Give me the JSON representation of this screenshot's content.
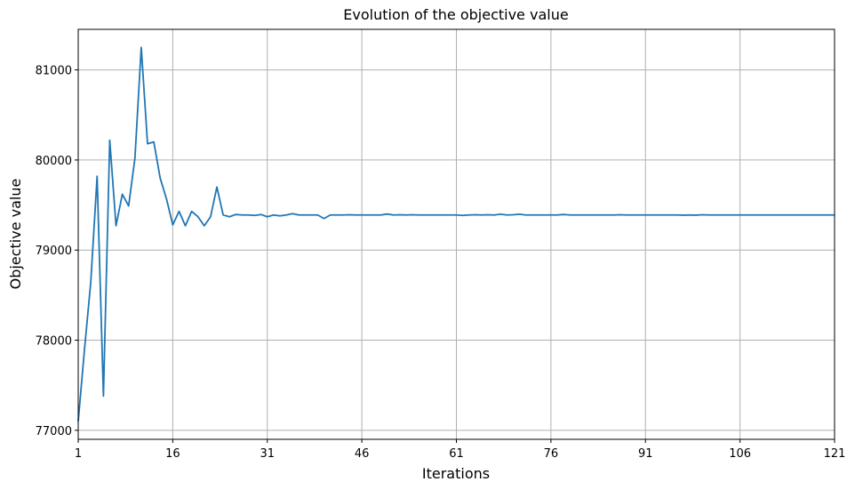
{
  "chart_data": {
    "type": "line",
    "title": "Evolution of the objective value",
    "xlabel": "Iterations",
    "ylabel": "Objective value",
    "xlim": [
      1,
      121
    ],
    "ylim": [
      76900,
      81450
    ],
    "xticks": [
      1,
      16,
      31,
      46,
      61,
      76,
      91,
      106,
      121
    ],
    "yticks": [
      77000,
      78000,
      79000,
      80000,
      81000
    ],
    "grid": true,
    "series": [
      {
        "color": "#1f77b4",
        "x": [
          1,
          2,
          3,
          4,
          5,
          6,
          7,
          8,
          9,
          10,
          11,
          12,
          13,
          14,
          15,
          16,
          17,
          18,
          19,
          20,
          21,
          22,
          23,
          24,
          25,
          26,
          27,
          28,
          29,
          30,
          31,
          32,
          33,
          34,
          35,
          36,
          37,
          38,
          39,
          40,
          41,
          42,
          43,
          44,
          45,
          46,
          47,
          48,
          49,
          50,
          51,
          52,
          53,
          54,
          55,
          56,
          57,
          58,
          59,
          60,
          61,
          62,
          63,
          64,
          65,
          66,
          67,
          68,
          69,
          70,
          71,
          72,
          73,
          74,
          75,
          76,
          77,
          78,
          79,
          80,
          81,
          82,
          83,
          84,
          85,
          86,
          87,
          88,
          89,
          90,
          91,
          92,
          93,
          94,
          95,
          96,
          97,
          98,
          99,
          100,
          101,
          102,
          103,
          104,
          105,
          106,
          107,
          108,
          109,
          110,
          111,
          112,
          113,
          114,
          115,
          116,
          117,
          118,
          119,
          120,
          121
        ],
        "values": [
          77100,
          77900,
          78650,
          79820,
          77380,
          80220,
          79270,
          79620,
          79490,
          80020,
          81250,
          80180,
          80200,
          79800,
          79570,
          79280,
          79430,
          79270,
          79430,
          79370,
          79270,
          79370,
          79700,
          79390,
          79370,
          79395,
          79390,
          79390,
          79385,
          79395,
          79370,
          79390,
          79380,
          79390,
          79405,
          79390,
          79390,
          79390,
          79390,
          79350,
          79390,
          79390,
          79390,
          79392,
          79390,
          79390,
          79390,
          79390,
          79390,
          79400,
          79390,
          79392,
          79390,
          79392,
          79390,
          79390,
          79390,
          79390,
          79390,
          79390,
          79390,
          79385,
          79390,
          79392,
          79390,
          79392,
          79390,
          79398,
          79390,
          79392,
          79398,
          79390,
          79390,
          79390,
          79390,
          79390,
          79390,
          79395,
          79390,
          79390,
          79390,
          79390,
          79390,
          79390,
          79390,
          79390,
          79392,
          79390,
          79390,
          79390,
          79390,
          79390,
          79390,
          79390,
          79390,
          79390,
          79388,
          79390,
          79388,
          79392,
          79390,
          79390,
          79390,
          79390,
          79390,
          79390,
          79390,
          79390,
          79390,
          79390,
          79390,
          79390,
          79390,
          79390,
          79390,
          79390,
          79390,
          79390,
          79390,
          79390,
          79390
        ]
      }
    ]
  }
}
